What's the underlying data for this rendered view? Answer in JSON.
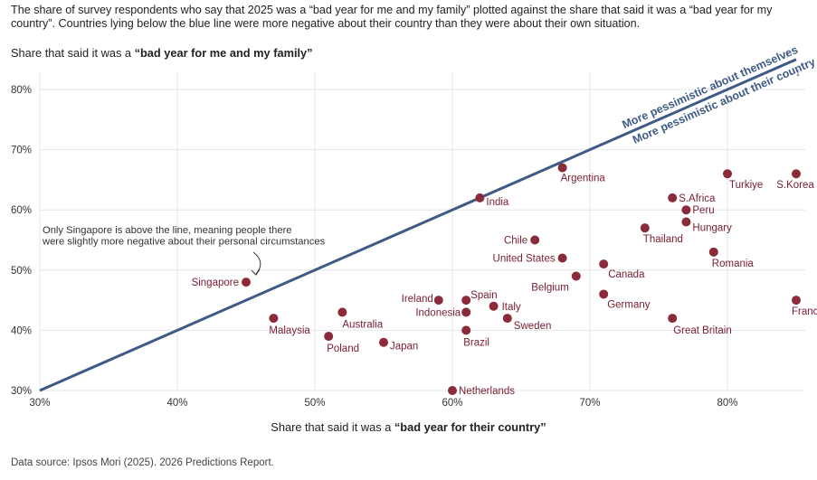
{
  "subtitle": "The share of survey respondents who say that 2025 was a “bad year for me and my family” plotted against the share that said it was a “bad year for my country”. Countries lying below the blue line were more negative about their country than they were about their own situation.",
  "source": "Data source: Ipsos Mori (2025). 2026 Predictions Report.",
  "colors": {
    "point": "#8b2a38",
    "line": "#3e5a85",
    "grid": "#e4e4e4"
  },
  "chart_data": {
    "type": "scatter",
    "ylabel_prefix": "Share that said it was a ",
    "ylabel_bold": "“bad year for me and my family”",
    "xlabel_prefix": "Share that said it was a ",
    "xlabel_bold": "“bad year for their country”",
    "xlim": [
      30,
      85
    ],
    "ylim": [
      30,
      80
    ],
    "xticks": [
      30,
      40,
      50,
      60,
      70,
      80
    ],
    "yticks": [
      30,
      40,
      50,
      60,
      70,
      80
    ],
    "tick_suffix": "%",
    "grid": true,
    "reference_line": {
      "from": [
        30,
        30
      ],
      "to": [
        85,
        85
      ],
      "label_above": "More pessimistic about themselves",
      "label_below": "More pessimistic about their country",
      "arrow_up": "↑",
      "arrow_down": "↓"
    },
    "annotation": {
      "lines": [
        "Only Singapore is above the line, meaning people there",
        "were slightly more negative about their personal circumstances"
      ],
      "target": "Singapore"
    },
    "points": [
      {
        "name": "Argentina",
        "x": 68,
        "y": 67
      },
      {
        "name": "India",
        "x": 62,
        "y": 62
      },
      {
        "name": "Turkiye",
        "x": 80,
        "y": 66
      },
      {
        "name": "S.Korea",
        "x": 85,
        "y": 66
      },
      {
        "name": "S.Africa",
        "x": 76,
        "y": 62
      },
      {
        "name": "Peru",
        "x": 77,
        "y": 60
      },
      {
        "name": "Hungary",
        "x": 77,
        "y": 58
      },
      {
        "name": "Thailand",
        "x": 74,
        "y": 57
      },
      {
        "name": "Chile",
        "x": 66,
        "y": 55
      },
      {
        "name": "United States",
        "x": 68,
        "y": 52
      },
      {
        "name": "Romania",
        "x": 79,
        "y": 53
      },
      {
        "name": "Canada",
        "x": 71,
        "y": 51
      },
      {
        "name": "Belgium",
        "x": 69,
        "y": 49
      },
      {
        "name": "Singapore",
        "x": 45,
        "y": 48
      },
      {
        "name": "Ireland",
        "x": 59,
        "y": 45
      },
      {
        "name": "Spain",
        "x": 61,
        "y": 45
      },
      {
        "name": "Germany",
        "x": 71,
        "y": 46
      },
      {
        "name": "France",
        "x": 85,
        "y": 45
      },
      {
        "name": "Italy",
        "x": 63,
        "y": 44
      },
      {
        "name": "Indonesia",
        "x": 61,
        "y": 43
      },
      {
        "name": "Australia",
        "x": 52,
        "y": 43
      },
      {
        "name": "Malaysia",
        "x": 47,
        "y": 42
      },
      {
        "name": "Sweden",
        "x": 64,
        "y": 42
      },
      {
        "name": "Great Britain",
        "x": 76,
        "y": 42
      },
      {
        "name": "Brazil",
        "x": 61,
        "y": 40
      },
      {
        "name": "Poland",
        "x": 51,
        "y": 39
      },
      {
        "name": "Japan",
        "x": 55,
        "y": 38
      },
      {
        "name": "Netherlands",
        "x": 60,
        "y": 30
      }
    ]
  }
}
